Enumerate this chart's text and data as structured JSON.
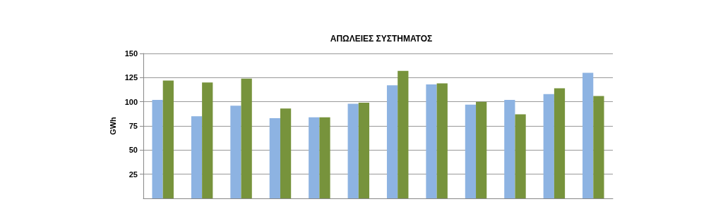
{
  "chart_data": {
    "type": "bar",
    "title": "ΑΠΩΛΕΙΕΣ ΣΥΣΤΗΜΑΤΟΣ",
    "ylabel": "GWh",
    "categories": [
      null,
      null,
      null,
      null,
      null,
      null,
      null,
      null,
      null,
      null,
      null,
      null
    ],
    "series": [
      {
        "color": "#8db3e2",
        "values": [
          102,
          85,
          96,
          83,
          84,
          98,
          117,
          118,
          97,
          102,
          108,
          130
        ]
      },
      {
        "color": "#77933c",
        "values": [
          122,
          120,
          124,
          93,
          84,
          99,
          132,
          119,
          100,
          87,
          114,
          106
        ]
      }
    ],
    "ylim": [
      0,
      150
    ],
    "yticks": [
      25,
      50,
      75,
      100,
      125,
      150
    ],
    "grid": "y"
  }
}
